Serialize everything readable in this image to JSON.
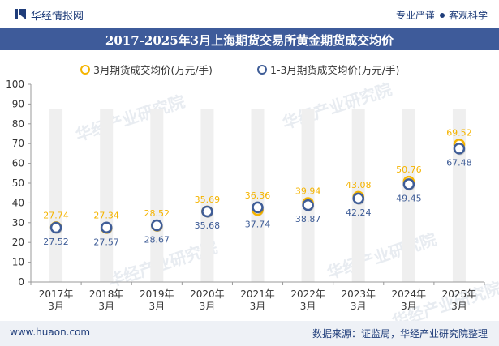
{
  "header": {
    "brand": "华经情报网",
    "slogan_left": "专业严谨",
    "slogan_right": "客观科学"
  },
  "footer": {
    "site": "www.huaon.com",
    "source": "数据来源：证监局，华经产业研究院整理"
  },
  "watermarks": [
    "华经产业研究院",
    "www.huaon.com"
  ],
  "colors": {
    "brand": "#1f3d7a",
    "title_bar": "#3e5b9a",
    "series_march": "#f5b400",
    "series_jan_mar": "#3f5d97",
    "column_band": "#efefef"
  },
  "chart_data": {
    "type": "scatter",
    "title": "2017-2025年3月上海期货交易所黄金期货成交均价",
    "categories": [
      "2017年\n3月",
      "2018年\n3月",
      "2019年\n3月",
      "2020年\n3月",
      "2021年\n3月",
      "2022年\n3月",
      "2023年\n3月",
      "2024年\n3月",
      "2025年\n3月"
    ],
    "series": [
      {
        "name": "3月期货成交均价(万元/手)",
        "values": [
          27.74,
          27.34,
          28.52,
          35.69,
          36.36,
          39.94,
          43.08,
          50.76,
          69.52
        ]
      },
      {
        "name": "1-3月期货成交均价(万元/手)",
        "values": [
          27.52,
          27.57,
          28.67,
          35.68,
          37.74,
          38.87,
          42.24,
          49.45,
          67.48
        ]
      }
    ],
    "ylim": [
      0,
      100
    ],
    "yticks": [
      0,
      10,
      20,
      30,
      40,
      50,
      60,
      70,
      80,
      90,
      100
    ],
    "grid": false,
    "legend": "top-center"
  }
}
